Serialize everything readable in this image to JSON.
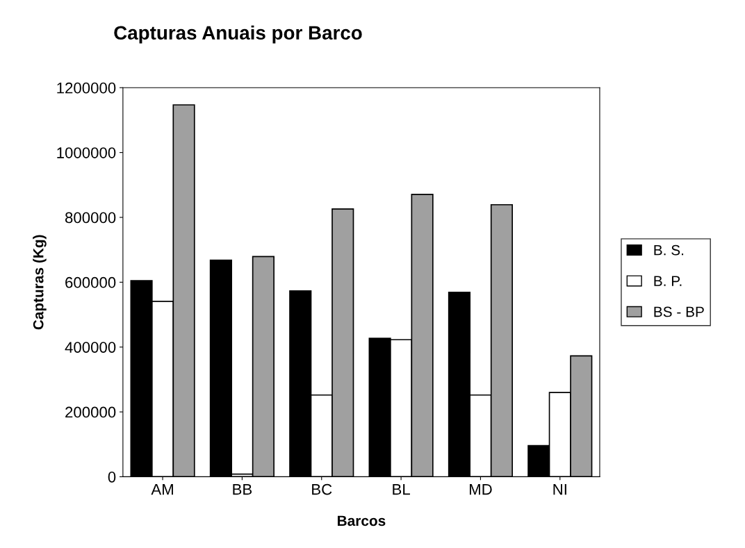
{
  "chart_data": {
    "type": "bar",
    "title": "Capturas Anuais por Barco",
    "xlabel": "Barcos",
    "ylabel": "Capturas (Kg)",
    "categories": [
      "AM",
      "BB",
      "BC",
      "BL",
      "MD",
      "NI"
    ],
    "series": [
      {
        "name": "B. S.",
        "color": "#000000",
        "values": [
          605000,
          668000,
          573000,
          427000,
          569000,
          96000
        ]
      },
      {
        "name": "B. P.",
        "color": "#ffffff",
        "values": [
          541000,
          8000,
          252000,
          423000,
          252000,
          260000
        ]
      },
      {
        "name": "BS - BP",
        "color": "#a0a0a0",
        "values": [
          1147000,
          679000,
          826000,
          871000,
          839000,
          373000
        ]
      }
    ],
    "ylim": [
      0,
      1200000
    ],
    "yticks": [
      0,
      200000,
      400000,
      600000,
      800000,
      1000000,
      1200000
    ],
    "grid": false,
    "legend": "right"
  }
}
